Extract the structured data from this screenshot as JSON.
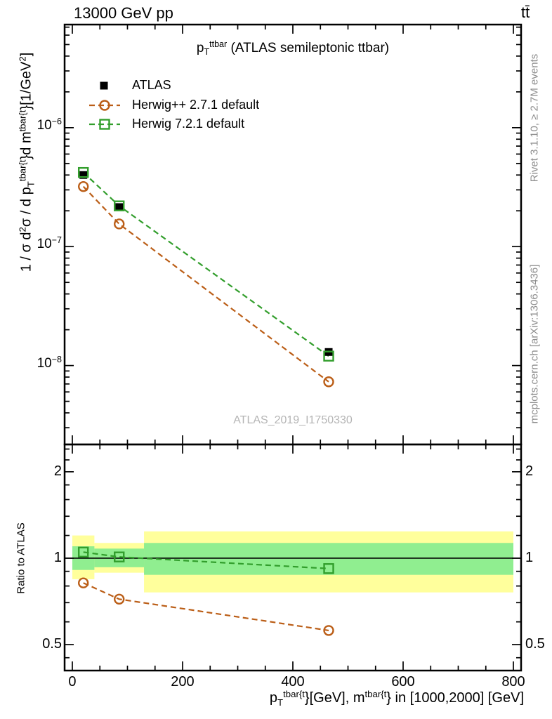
{
  "header": {
    "left": "13000 GeV pp",
    "right": "tt̄"
  },
  "panel_title_parts": [
    {
      "text": "p"
    },
    {
      "text": "T",
      "style": "sub"
    },
    {
      "text": "ttbar",
      "style": "sup"
    },
    {
      "text": " (ATLAS semileptonic ttbar)"
    }
  ],
  "legend": [
    {
      "label": "ATLAS",
      "marker": "square-filled",
      "color": "#000000",
      "line": "none"
    },
    {
      "label": "Herwig++ 2.7.1 default",
      "marker": "circle-open",
      "color": "#bb5e17",
      "line": "dashed"
    },
    {
      "label": "Herwig 7.2.1 default",
      "marker": "square-open",
      "color": "#329e2c",
      "line": "dashed"
    }
  ],
  "watermark": "ATLAS_2019_I1750330",
  "right_margin": {
    "top": "Rivet 3.1.10, ≥ 2.7M events",
    "bottom": "mcplots.cern.ch [arXiv:1306.3436]"
  },
  "ratio_ylabel": "Ratio to ATLAS",
  "ylabel_parts": [
    {
      "text": "1 / σ d"
    },
    {
      "text": "2",
      "style": "sup"
    },
    {
      "text": "σ / d p"
    },
    {
      "text": "T",
      "style": "sub"
    },
    {
      "text": "tbar{t",
      "style": "sup"
    },
    {
      "text": "}d m"
    },
    {
      "text": "tbar{t",
      "style": "sup"
    },
    {
      "text": "}[1/GeV"
    },
    {
      "text": "2",
      "style": "sup"
    },
    {
      "text": "]"
    }
  ],
  "xlabel_parts": [
    {
      "text": "p"
    },
    {
      "text": "T",
      "style": "sub"
    },
    {
      "text": "tbar{t",
      "style": "sup"
    },
    {
      "text": "}[GeV], m"
    },
    {
      "text": "tbar{t",
      "style": "sup"
    },
    {
      "text": "} in [1000,2000] [GeV]"
    }
  ],
  "chart_data": {
    "type": "line",
    "title": "pT^ttbar (ATLAS semileptonic ttbar)",
    "xlabel": "pT^tbar{t}[GeV], m^tbar{t} in [1000,2000] [GeV]",
    "ylabel": "1 / sigma d2sigma / d pT^tbar{t} d m^tbar{t} [1/GeV2]",
    "ratio_label": "Ratio to ATLAS",
    "x_centers": [
      20,
      85,
      465
    ],
    "bin_edges": [
      0,
      40,
      130,
      800
    ],
    "series": [
      {
        "name": "ATLAS",
        "values": [
          4e-07,
          2.15e-07,
          1.3e-08
        ]
      },
      {
        "name": "Herwig++ 2.7.1 default",
        "values": [
          3.2e-07,
          1.55e-07,
          7.3e-09
        ],
        "ratio": [
          0.82,
          0.72,
          0.56
        ]
      },
      {
        "name": "Herwig 7.2.1 default",
        "values": [
          4.2e-07,
          2.2e-07,
          1.2e-08
        ],
        "ratio": [
          1.05,
          1.01,
          0.92
        ]
      }
    ],
    "bands": {
      "yellow": [
        [
          0.845,
          1.2
        ],
        [
          0.89,
          1.13
        ],
        [
          0.76,
          1.24
        ]
      ],
      "green": [
        [
          0.91,
          1.1
        ],
        [
          0.93,
          1.08
        ],
        [
          0.875,
          1.13
        ]
      ]
    },
    "axes": {
      "x": {
        "min": -14,
        "max": 814,
        "majors": [
          0,
          200,
          400,
          600,
          800
        ],
        "minor_step": 50,
        "tick_labels": [
          {
            "label": "0",
            "value": 0
          },
          {
            "label": "200",
            "value": 200
          },
          {
            "label": "400",
            "value": 400
          },
          {
            "label": "600",
            "value": 600
          },
          {
            "label": "800",
            "value": 800
          }
        ]
      },
      "y_main": {
        "scale": "log",
        "min": 2.17e-09,
        "max": 7.36e-06,
        "majors": [
          1e-06,
          1e-07,
          1e-08
        ],
        "tick_labels": [
          {
            "base": "10",
            "exp": "−6",
            "value": 1e-06
          },
          {
            "base": "10",
            "exp": "−7",
            "value": 1e-07
          },
          {
            "base": "10",
            "exp": "−8",
            "value": 1e-08
          }
        ]
      },
      "y_ratio": {
        "scale": "log",
        "min": 0.406,
        "max": 2.49,
        "majors": [
          0.5,
          1,
          2
        ],
        "minors": [
          0.45,
          0.6,
          0.7,
          0.8,
          0.9,
          1.2,
          1.4,
          1.6,
          1.8,
          2.2,
          2.4
        ],
        "tick_labels": [
          {
            "label": "2",
            "value": 2
          },
          {
            "label": "1",
            "value": 1
          },
          {
            "label": "0.5",
            "value": 0.5
          }
        ]
      }
    },
    "colors": {
      "atlas": "#000000",
      "herwigpp": "#bb5e17",
      "herwig7": "#329e2c",
      "band_yellow": "#ffff9c",
      "band_green": "#90ee90",
      "frame": "#000000"
    }
  }
}
